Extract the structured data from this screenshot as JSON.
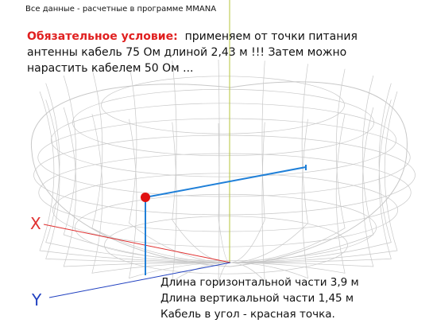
{
  "header": {
    "note": "Все данные - расчетные в программе MMANA"
  },
  "condition": {
    "label": "Обязательное условие:",
    "text": "применяем от точки питания антенны кабель 75 Ом длиной 2,43 м !!! Затем можно нарастить кабелем 50 Ом  ..."
  },
  "axes": {
    "x": "X",
    "y": "Y"
  },
  "dimensions": [
    "Длина горизонтальной части 3,9 м",
    "Длина вертикальной части 1,45 м",
    "Кабель в угол - красная точка."
  ]
}
